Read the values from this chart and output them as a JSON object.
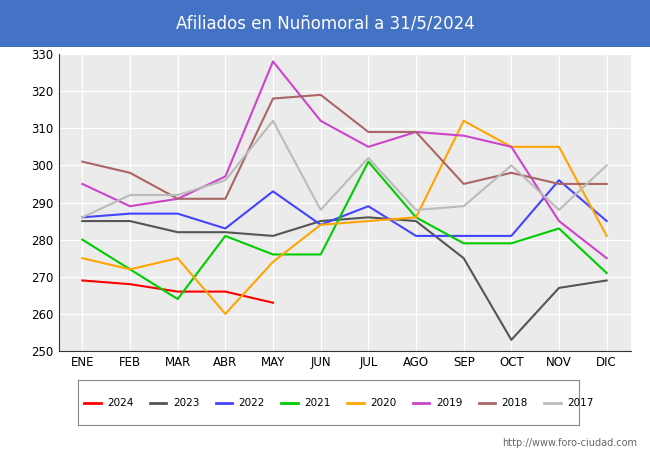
{
  "title": "Afiliados en Nuñomoral a 31/5/2024",
  "title_color": "white",
  "title_bg_color": "#4472C4",
  "ylim": [
    250,
    330
  ],
  "yticks": [
    250,
    260,
    270,
    280,
    290,
    300,
    310,
    320,
    330
  ],
  "months": [
    "ENE",
    "FEB",
    "MAR",
    "ABR",
    "MAY",
    "JUN",
    "JUL",
    "AGO",
    "SEP",
    "OCT",
    "NOV",
    "DIC"
  ],
  "watermark": "http://www.foro-ciudad.com",
  "series": {
    "2024": {
      "color": "#FF0000",
      "values": [
        269,
        268,
        266,
        266,
        263,
        null,
        null,
        null,
        null,
        null,
        null,
        null
      ]
    },
    "2023": {
      "color": "#555555",
      "values": [
        285,
        285,
        282,
        282,
        281,
        285,
        286,
        285,
        275,
        253,
        267,
        269
      ]
    },
    "2022": {
      "color": "#4444FF",
      "values": [
        286,
        287,
        287,
        283,
        293,
        284,
        289,
        281,
        281,
        281,
        296,
        285
      ]
    },
    "2021": {
      "color": "#00CC00",
      "values": [
        280,
        272,
        264,
        281,
        276,
        276,
        301,
        286,
        279,
        279,
        283,
        271
      ]
    },
    "2020": {
      "color": "#FFA500",
      "values": [
        275,
        272,
        275,
        260,
        274,
        284,
        285,
        286,
        312,
        305,
        305,
        281
      ]
    },
    "2019": {
      "color": "#CC44CC",
      "values": [
        295,
        289,
        291,
        297,
        328,
        312,
        305,
        309,
        308,
        305,
        285,
        275
      ]
    },
    "2018": {
      "color": "#AA6666",
      "values": [
        301,
        298,
        291,
        291,
        318,
        319,
        309,
        309,
        295,
        298,
        295,
        295
      ]
    },
    "2017": {
      "color": "#BBBBBB",
      "values": [
        286,
        292,
        292,
        296,
        312,
        288,
        302,
        288,
        289,
        300,
        288,
        300
      ]
    }
  },
  "series_order": [
    "2024",
    "2023",
    "2022",
    "2021",
    "2020",
    "2019",
    "2018",
    "2017"
  ]
}
